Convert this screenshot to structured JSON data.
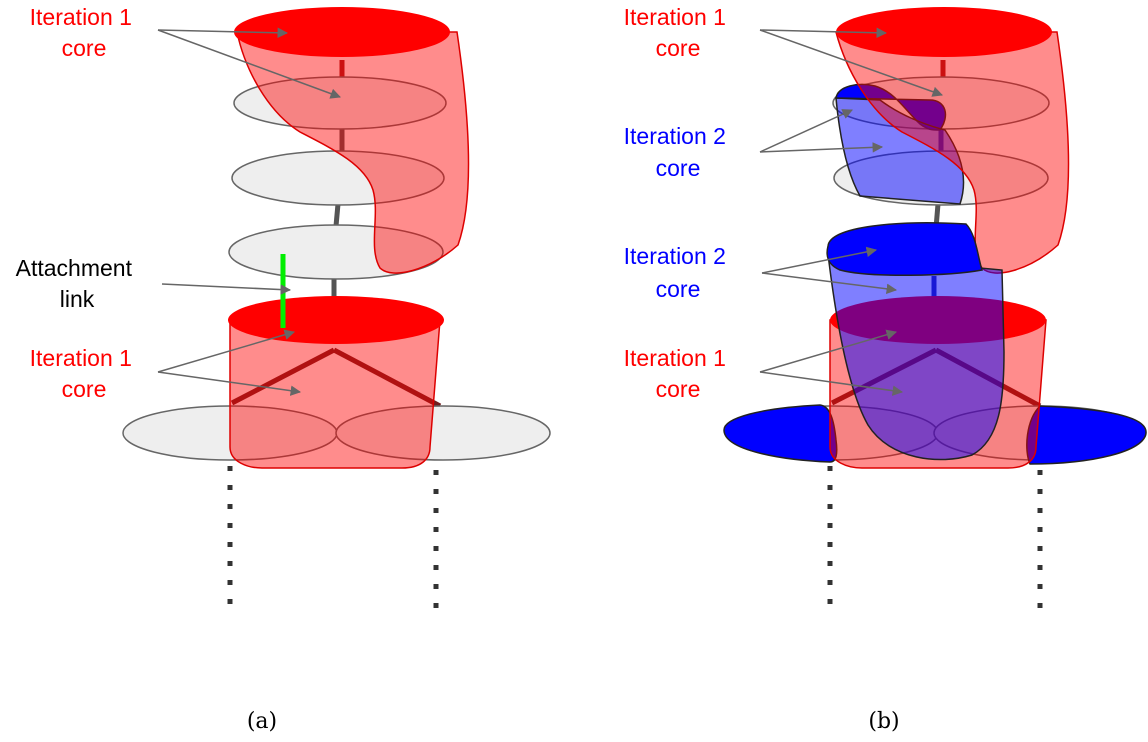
{
  "panel_a": {
    "caption": "(a)",
    "top_core_label": [
      "Iteration 1",
      "core"
    ],
    "attachment_label": [
      "Attachment",
      "link"
    ],
    "bottom_core_label": [
      "Iteration 1",
      "core"
    ]
  },
  "panel_b": {
    "caption": "(b)",
    "top_core_label": [
      "Iteration 1",
      "core"
    ],
    "upper_iter2_label": [
      "Iteration 2",
      "core"
    ],
    "lower_iter2_label": [
      "Iteration 2",
      "core"
    ],
    "bottom_core_label": [
      "Iteration 1",
      "core"
    ]
  },
  "colors": {
    "iteration1": "#ff0000",
    "iteration2": "#0000ff",
    "attachment": "#00ee00",
    "node": "#eeeeee"
  }
}
